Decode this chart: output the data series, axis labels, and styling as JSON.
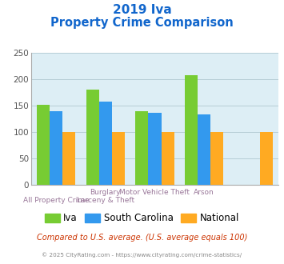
{
  "title_line1": "2019 Iva",
  "title_line2": "Property Crime Comparison",
  "series": {
    "Iva": [
      152,
      180,
      140,
      208,
      0
    ],
    "South Carolina": [
      140,
      158,
      136,
      133,
      0
    ],
    "National": [
      100,
      100,
      100,
      100,
      100
    ]
  },
  "colors": {
    "Iva": "#77cc33",
    "South Carolina": "#3399ee",
    "National": "#ffaa22"
  },
  "group_x": [
    0.5,
    1.5,
    2.5,
    3.5,
    4.5
  ],
  "top_labels": [
    "",
    "Burglary",
    "Motor Vehicle Theft",
    "Arson",
    ""
  ],
  "bot_labels": [
    "All Property Crime",
    "Larceny & Theft",
    "",
    "",
    ""
  ],
  "ylim": [
    0,
    250
  ],
  "yticks": [
    0,
    50,
    100,
    150,
    200,
    250
  ],
  "background_color": "#ddeeff",
  "plot_bg": "#ddeef5",
  "title_color": "#1166cc",
  "xlabel_color": "#997799",
  "footer_text": "Compared to U.S. average. (U.S. average equals 100)",
  "credit_text": "© 2025 CityRating.com - https://www.cityrating.com/crime-statistics/",
  "footer_color": "#cc3300",
  "credit_color": "#888888",
  "bar_width": 0.26
}
